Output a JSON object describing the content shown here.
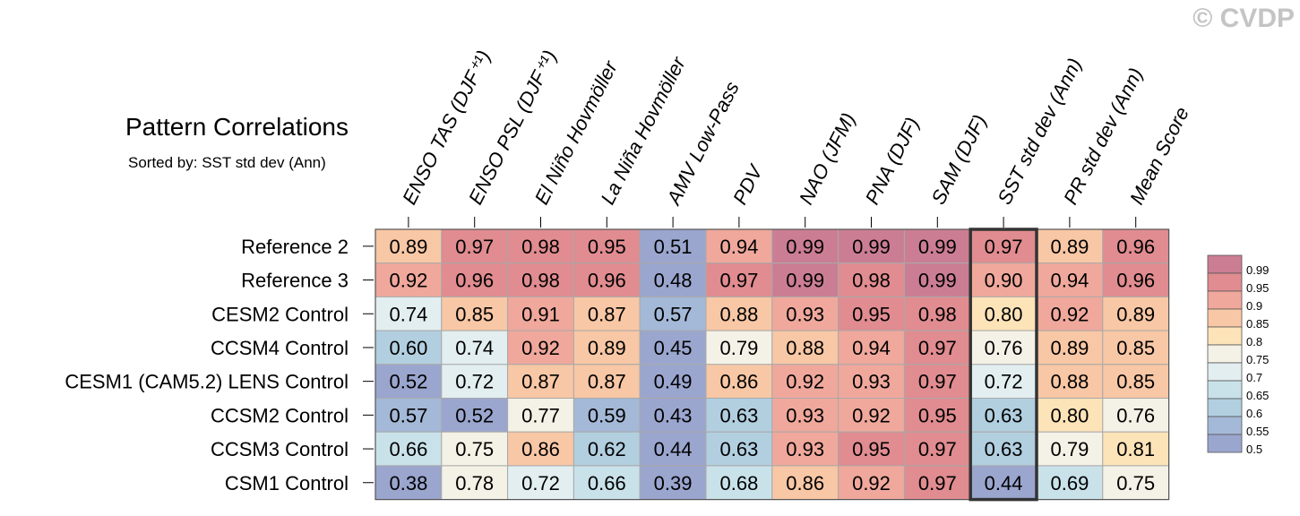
{
  "watermark": "© CVDP",
  "chart_data": {
    "type": "heatmap",
    "title": "Pattern Correlations",
    "subtitle": "Sorted by: SST std dev (Ann)",
    "highlighted_column": "SST std dev (Ann)",
    "columns": [
      "ENSO TAS (DJF⁺¹)",
      "ENSO PSL (DJF⁺¹)",
      "El Niño Hovmöller",
      "La Niña Hovmöller",
      "AMV Low-Pass",
      "PDV",
      "NAO (JFM)",
      "PNA (DJF)",
      "SAM (DJF)",
      "SST std dev (Ann)",
      "PR std dev (Ann)",
      "Mean Score"
    ],
    "rows": [
      "Reference 2",
      "Reference 3",
      "CESM2 Control",
      "CCSM4 Control",
      "CESM1 (CAM5.2) LENS Control",
      "CCSM2 Control",
      "CCSM3 Control",
      "CSM1 Control"
    ],
    "values": [
      [
        0.89,
        0.97,
        0.98,
        0.95,
        0.51,
        0.94,
        0.99,
        0.99,
        0.99,
        0.97,
        0.89,
        0.96
      ],
      [
        0.92,
        0.96,
        0.98,
        0.96,
        0.48,
        0.97,
        0.99,
        0.98,
        0.99,
        0.9,
        0.94,
        0.96
      ],
      [
        0.74,
        0.85,
        0.91,
        0.87,
        0.57,
        0.88,
        0.93,
        0.95,
        0.98,
        0.8,
        0.92,
        0.89
      ],
      [
        0.6,
        0.74,
        0.92,
        0.89,
        0.45,
        0.79,
        0.88,
        0.94,
        0.97,
        0.76,
        0.89,
        0.85
      ],
      [
        0.52,
        0.72,
        0.87,
        0.87,
        0.49,
        0.86,
        0.92,
        0.93,
        0.97,
        0.72,
        0.88,
        0.85
      ],
      [
        0.57,
        0.52,
        0.77,
        0.59,
        0.43,
        0.63,
        0.93,
        0.92,
        0.95,
        0.63,
        0.8,
        0.76
      ],
      [
        0.66,
        0.75,
        0.86,
        0.62,
        0.44,
        0.63,
        0.93,
        0.95,
        0.97,
        0.63,
        0.79,
        0.81
      ],
      [
        0.38,
        0.78,
        0.72,
        0.66,
        0.39,
        0.68,
        0.86,
        0.92,
        0.97,
        0.44,
        0.69,
        0.75
      ]
    ],
    "legend": {
      "levels": [
        0.99,
        0.95,
        0.9,
        0.85,
        0.8,
        0.75,
        0.7,
        0.65,
        0.6,
        0.55,
        0.5
      ],
      "labels": [
        "0.99",
        "0.95",
        "0.9",
        "0.85",
        "0.8",
        "0.75",
        "0.7",
        "0.65",
        "0.6",
        "0.55",
        "0.5"
      ],
      "colors": [
        "#cb7e93",
        "#e08c90",
        "#f0a89c",
        "#f8c7a5",
        "#fde3b8",
        "#f4f2e6",
        "#e2eef0",
        "#c9e2ea",
        "#b2cfe0",
        "#a4b9d7",
        "#9ba6cf"
      ]
    }
  }
}
